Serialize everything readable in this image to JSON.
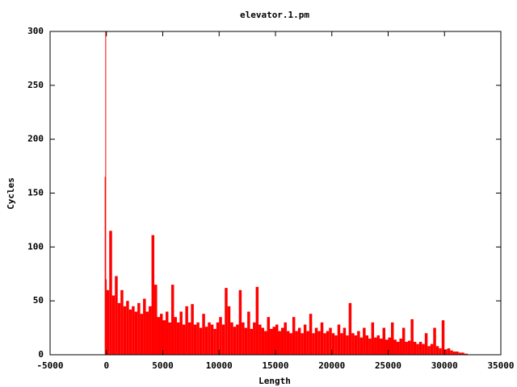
{
  "chart_data": {
    "type": "impulse",
    "title": "elevator.1.pm",
    "x_label": "Length",
    "y_label": "Cycles",
    "color": "#ff0000",
    "xlim": [
      -5000,
      35000
    ],
    "xticks": [
      -5000,
      0,
      5000,
      10000,
      15000,
      20000,
      25000,
      30000,
      35000
    ],
    "ylim": [
      0,
      300
    ],
    "yticks": [
      0,
      50,
      100,
      150,
      200,
      250,
      300
    ],
    "x": [
      -150,
      -100,
      -50,
      0,
      250,
      500,
      750,
      1000,
      1250,
      1500,
      1750,
      2000,
      2250,
      2500,
      2750,
      3000,
      3250,
      3500,
      3750,
      4000,
      4250,
      4500,
      4750,
      5000,
      5250,
      5500,
      5750,
      6000,
      6250,
      6500,
      6750,
      7000,
      7250,
      7500,
      7750,
      8000,
      8250,
      8500,
      8750,
      9000,
      9250,
      9500,
      9750,
      10000,
      10250,
      10500,
      10750,
      11000,
      11250,
      11500,
      11750,
      12000,
      12250,
      12500,
      12750,
      13000,
      13250,
      13500,
      13750,
      14000,
      14250,
      14500,
      14750,
      15000,
      15250,
      15500,
      15750,
      16000,
      16250,
      16500,
      16750,
      17000,
      17250,
      17500,
      17750,
      18000,
      18250,
      18500,
      18750,
      19000,
      19250,
      19500,
      19750,
      20000,
      20250,
      20500,
      20750,
      21000,
      21250,
      21500,
      21750,
      22000,
      22250,
      22500,
      22750,
      23000,
      23250,
      23500,
      23750,
      24000,
      24250,
      24500,
      24750,
      25000,
      25250,
      25500,
      25750,
      26000,
      26250,
      26500,
      26750,
      27000,
      27250,
      27500,
      27750,
      28000,
      28250,
      28500,
      28750,
      29000,
      29250,
      29500,
      29750,
      30000,
      30250,
      30500,
      30750,
      31000,
      31250,
      31500,
      31750,
      32000
    ],
    "values": [
      165,
      300,
      70,
      60,
      115,
      55,
      73,
      48,
      60,
      45,
      50,
      42,
      45,
      40,
      48,
      38,
      52,
      40,
      45,
      111,
      65,
      35,
      38,
      32,
      40,
      30,
      65,
      35,
      30,
      40,
      28,
      45,
      30,
      47,
      28,
      30,
      25,
      38,
      26,
      30,
      28,
      24,
      30,
      35,
      28,
      62,
      45,
      30,
      26,
      28,
      60,
      30,
      25,
      40,
      24,
      30,
      63,
      28,
      25,
      22,
      35,
      24,
      26,
      28,
      22,
      25,
      30,
      22,
      20,
      35,
      22,
      25,
      20,
      28,
      22,
      38,
      20,
      25,
      22,
      30,
      20,
      22,
      25,
      20,
      18,
      28,
      20,
      25,
      18,
      48,
      20,
      18,
      22,
      16,
      25,
      18,
      15,
      30,
      16,
      18,
      15,
      25,
      14,
      16,
      30,
      14,
      12,
      15,
      25,
      12,
      13,
      33,
      12,
      10,
      12,
      10,
      20,
      8,
      10,
      25,
      8,
      6,
      32,
      5,
      6,
      4,
      3,
      3,
      2,
      2,
      1,
      1
    ]
  }
}
